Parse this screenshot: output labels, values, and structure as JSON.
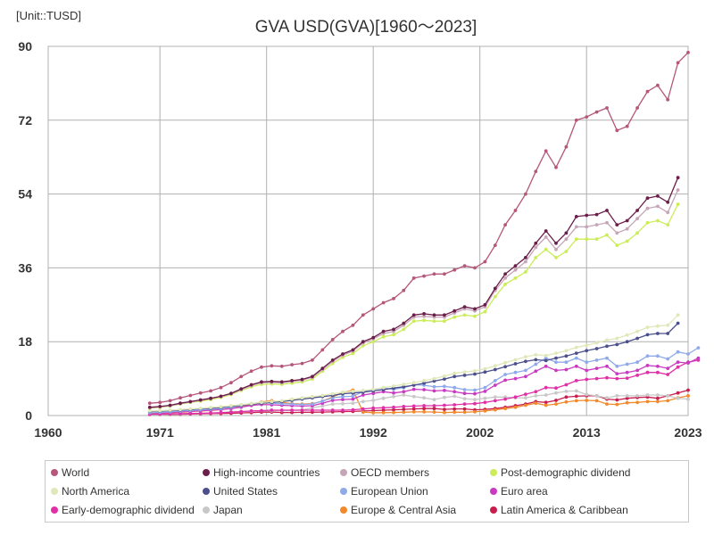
{
  "unit_label": "[Unit::TUSD]",
  "chart_data": {
    "type": "line",
    "title": "GVA USD(GVA)[1960～2023]",
    "xlabel": "",
    "ylabel": "",
    "xlim": [
      1960,
      2023
    ],
    "ylim": [
      0,
      90
    ],
    "x_ticks": [
      "1960",
      "1971",
      "1981",
      "1992",
      "2002",
      "2013",
      "2023"
    ],
    "x_tick_values": [
      1960,
      1971,
      1981.5,
      1992,
      2002.5,
      2013,
      2023
    ],
    "y_ticks": [
      "0",
      "18",
      "36",
      "54",
      "72",
      "90"
    ],
    "y_tick_values": [
      0,
      18,
      36,
      54,
      72,
      90
    ],
    "series": [
      {
        "name": "World",
        "color": "#b5567a",
        "x_start": 1970,
        "values": [
          3.0,
          3.2,
          3.6,
          4.3,
          4.9,
          5.5,
          6.0,
          6.8,
          8.0,
          9.5,
          10.8,
          11.8,
          12.1,
          12.0,
          12.4,
          12.7,
          13.5,
          16.0,
          18.5,
          20.5,
          22.0,
          24.5,
          26.0,
          27.5,
          28.5,
          30.5,
          33.5,
          34.0,
          34.5,
          34.5,
          35.5,
          36.5,
          36.0,
          37.5,
          41.5,
          46.5,
          50.0,
          54.0,
          59.5,
          64.5,
          60.5,
          65.5,
          72.0,
          72.8,
          74.0,
          75.0,
          69.5,
          70.5,
          75.0,
          79.0,
          80.5,
          77.0,
          86.0,
          88.5
        ]
      },
      {
        "name": "High-income countries",
        "color": "#6b1e4a",
        "x_start": 1970,
        "values": [
          2.0,
          2.2,
          2.5,
          3.0,
          3.4,
          3.8,
          4.2,
          4.7,
          5.4,
          6.5,
          7.5,
          8.2,
          8.3,
          8.2,
          8.5,
          8.8,
          9.5,
          11.5,
          13.5,
          15.0,
          16.0,
          18.0,
          19.0,
          20.5,
          21.0,
          22.5,
          24.5,
          24.8,
          24.5,
          24.5,
          25.5,
          26.5,
          26.0,
          27.0,
          31.0,
          34.5,
          36.5,
          38.5,
          42.0,
          45.0,
          42.0,
          44.5,
          48.5,
          48.8,
          49.0,
          50.0,
          46.5,
          47.5,
          50.0,
          53.0,
          53.5,
          52.0,
          58.0
        ]
      },
      {
        "name": "OECD members",
        "color": "#c5a5b7",
        "x_start": 1970,
        "values": [
          1.9,
          2.1,
          2.4,
          2.9,
          3.3,
          3.7,
          4.1,
          4.6,
          5.3,
          6.3,
          7.3,
          8.0,
          8.1,
          8.0,
          8.3,
          8.6,
          9.3,
          11.2,
          13.2,
          14.7,
          15.7,
          17.7,
          18.7,
          20.0,
          20.5,
          22.0,
          24.0,
          24.2,
          24.0,
          24.0,
          25.0,
          26.0,
          25.5,
          26.5,
          30.5,
          33.5,
          35.5,
          37.5,
          41.0,
          43.5,
          40.5,
          43.0,
          46.0,
          46.0,
          46.5,
          47.0,
          44.5,
          45.5,
          48.0,
          50.5,
          51.0,
          49.5,
          55.0
        ]
      },
      {
        "name": "Post-demographic dividend",
        "color": "#ccec5a",
        "x_start": 1970,
        "values": [
          1.8,
          2.0,
          2.3,
          2.8,
          3.2,
          3.5,
          3.9,
          4.4,
          5.1,
          6.1,
          7.0,
          7.6,
          7.7,
          7.6,
          7.9,
          8.2,
          8.9,
          10.8,
          12.7,
          14.2,
          15.1,
          17.0,
          18.0,
          19.2,
          19.7,
          21.0,
          23.0,
          23.2,
          23.0,
          23.0,
          24.0,
          24.5,
          24.2,
          25.3,
          29.0,
          32.0,
          33.5,
          35.0,
          38.5,
          40.5,
          38.5,
          40.0,
          43.0,
          43.0,
          43.0,
          44.0,
          41.5,
          42.5,
          44.5,
          47.0,
          47.5,
          46.5,
          51.5
        ]
      },
      {
        "name": "North America",
        "color": "#dfe8b8",
        "x_start": 1970,
        "values": [
          1.1,
          1.2,
          1.3,
          1.45,
          1.6,
          1.75,
          1.95,
          2.15,
          2.4,
          2.65,
          2.9,
          3.2,
          3.4,
          3.6,
          4.0,
          4.3,
          4.6,
          4.9,
          5.3,
          5.7,
          5.9,
          6.1,
          6.4,
          6.8,
          7.2,
          7.6,
          8.0,
          8.5,
          9.0,
          9.6,
          10.3,
          10.6,
          10.9,
          11.4,
          12.1,
          12.9,
          13.6,
          14.3,
          14.8,
          14.6,
          15.2,
          15.8,
          16.6,
          17.1,
          17.7,
          18.4,
          18.8,
          19.6,
          20.5,
          21.5,
          21.8,
          22.0,
          24.5
        ]
      },
      {
        "name": "United States",
        "color": "#4b4f8c",
        "x_start": 1970,
        "values": [
          1.0,
          1.1,
          1.2,
          1.35,
          1.5,
          1.65,
          1.8,
          2.0,
          2.25,
          2.5,
          2.75,
          3.0,
          3.2,
          3.4,
          3.7,
          4.0,
          4.3,
          4.6,
          4.9,
          5.3,
          5.5,
          5.7,
          6.0,
          6.3,
          6.7,
          7.0,
          7.4,
          7.9,
          8.4,
          8.9,
          9.5,
          9.8,
          10.1,
          10.6,
          11.2,
          11.9,
          12.6,
          13.2,
          13.6,
          13.4,
          14.0,
          14.5,
          15.2,
          15.8,
          16.3,
          16.9,
          17.3,
          18.0,
          18.8,
          19.7,
          20.0,
          20.0,
          22.5
        ]
      },
      {
        "name": "European Union",
        "color": "#8faaea",
        "x_start": 1970,
        "values": [
          0.7,
          0.8,
          0.9,
          1.1,
          1.25,
          1.4,
          1.55,
          1.7,
          2.0,
          2.4,
          2.9,
          3.2,
          3.0,
          2.9,
          2.8,
          2.7,
          2.8,
          3.5,
          4.3,
          4.6,
          4.7,
          5.8,
          6.3,
          6.7,
          6.4,
          6.8,
          7.5,
          7.4,
          7.0,
          7.1,
          6.8,
          6.3,
          6.2,
          6.8,
          8.5,
          10.0,
          10.5,
          11.0,
          12.5,
          14.0,
          13.0,
          13.0,
          14.0,
          13.0,
          13.5,
          14.0,
          12.0,
          12.5,
          13.0,
          14.5,
          14.5,
          13.8,
          15.5,
          15.0,
          16.5
        ]
      },
      {
        "name": "Euro area",
        "color": "#c93ac2",
        "x_start": 1970,
        "values": [
          0.6,
          0.65,
          0.75,
          0.9,
          1.0,
          1.15,
          1.3,
          1.45,
          1.7,
          2.05,
          2.45,
          2.7,
          2.6,
          2.5,
          2.4,
          2.3,
          2.4,
          3.0,
          3.7,
          3.9,
          4.0,
          5.0,
          5.4,
          5.8,
          5.5,
          5.8,
          6.4,
          6.3,
          6.0,
          6.1,
          5.8,
          5.4,
          5.3,
          5.9,
          7.4,
          8.6,
          9.0,
          9.5,
          10.8,
          12.0,
          11.0,
          11.2,
          12.0,
          11.0,
          11.5,
          12.0,
          10.2,
          10.5,
          11.0,
          12.2,
          12.0,
          11.5,
          13.0,
          12.8,
          14.0
        ]
      },
      {
        "name": "Early-demographic dividend",
        "color": "#e030a8",
        "x_start": 1970,
        "values": [
          0.3,
          0.35,
          0.4,
          0.45,
          0.5,
          0.55,
          0.6,
          0.7,
          0.8,
          0.95,
          1.1,
          1.2,
          1.3,
          1.3,
          1.3,
          1.3,
          1.3,
          1.3,
          1.3,
          1.3,
          1.4,
          1.6,
          1.8,
          1.9,
          2.0,
          2.2,
          2.3,
          2.4,
          2.4,
          2.5,
          2.6,
          2.8,
          2.9,
          3.2,
          3.6,
          4.0,
          4.5,
          5.2,
          5.8,
          6.8,
          6.7,
          7.5,
          8.5,
          8.8,
          9.0,
          9.2,
          9.0,
          9.1,
          9.8,
          10.5,
          10.5,
          10.0,
          11.8,
          13.0,
          13.5
        ]
      },
      {
        "name": "Japan",
        "color": "#c8c8c8",
        "x_start": 1970,
        "values": [
          0.2,
          0.24,
          0.3,
          0.42,
          0.48,
          0.51,
          0.58,
          0.7,
          0.95,
          1.0,
          1.05,
          1.15,
          1.1,
          1.2,
          1.25,
          1.35,
          1.9,
          2.3,
          2.8,
          2.9,
          3.0,
          3.4,
          3.7,
          4.2,
          4.6,
          5.0,
          4.6,
          4.3,
          3.9,
          4.4,
          4.7,
          4.1,
          3.9,
          4.2,
          4.5,
          4.5,
          4.3,
          4.3,
          4.8,
          5.0,
          5.5,
          5.9,
          6.0,
          5.1,
          4.8,
          4.3,
          4.8,
          4.8,
          4.8,
          5.0,
          5.0,
          4.8,
          4.2,
          4.0
        ]
      },
      {
        "name": "Europe & Central Asia",
        "color": "#f28a2c",
        "x_start": 1970,
        "values": [
          0.5,
          0.55,
          0.65,
          0.8,
          0.95,
          1.1,
          1.25,
          1.45,
          1.75,
          2.2,
          2.7,
          3.3,
          3.6,
          3.2,
          2.9,
          2.8,
          2.9,
          3.5,
          4.5,
          5.6,
          6.2,
          0.8,
          0.7,
          0.7,
          0.75,
          0.8,
          0.9,
          0.9,
          0.85,
          0.75,
          0.8,
          0.8,
          0.9,
          1.1,
          1.4,
          1.7,
          2.0,
          2.5,
          3.0,
          2.5,
          2.8,
          3.3,
          3.6,
          3.7,
          3.6,
          2.8,
          2.7,
          3.1,
          3.2,
          3.4,
          3.4,
          3.6,
          4.3,
          4.8
        ]
      },
      {
        "name": "Latin America & Caribbean",
        "color": "#c81e4e",
        "x_start": 1970,
        "values": [
          0.2,
          0.22,
          0.25,
          0.3,
          0.36,
          0.4,
          0.45,
          0.5,
          0.55,
          0.62,
          0.72,
          0.82,
          0.85,
          0.75,
          0.75,
          0.78,
          0.8,
          0.85,
          0.9,
          0.95,
          1.0,
          1.1,
          1.2,
          1.3,
          1.4,
          1.5,
          1.6,
          1.7,
          1.7,
          1.5,
          1.6,
          1.6,
          1.4,
          1.5,
          1.7,
          2.0,
          2.4,
          2.8,
          3.4,
          3.2,
          3.7,
          4.5,
          4.7,
          4.8,
          4.8,
          4.0,
          3.8,
          4.2,
          4.4,
          4.5,
          4.2,
          4.8,
          5.5,
          6.2
        ]
      }
    ]
  }
}
